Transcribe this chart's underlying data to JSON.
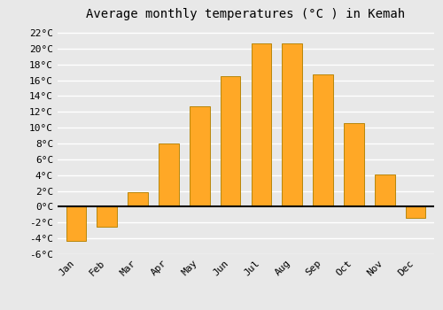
{
  "title": "Average monthly temperatures (°C ) in Kemah",
  "months": [
    "Jan",
    "Feb",
    "Mar",
    "Apr",
    "May",
    "Jun",
    "Jul",
    "Aug",
    "Sep",
    "Oct",
    "Nov",
    "Dec"
  ],
  "values": [
    -4.3,
    -2.5,
    1.8,
    8.0,
    12.7,
    16.5,
    20.7,
    20.6,
    16.7,
    10.6,
    4.1,
    -1.4
  ],
  "bar_color": "#FFA826",
  "bar_edge_color": "#B8860B",
  "ylim": [
    -6,
    23
  ],
  "yticks": [
    -6,
    -4,
    -2,
    0,
    2,
    4,
    6,
    8,
    10,
    12,
    14,
    16,
    18,
    20,
    22
  ],
  "ytick_labels": [
    "-6°C",
    "-4°C",
    "-2°C",
    "0°C",
    "2°C",
    "4°C",
    "6°C",
    "8°C",
    "10°C",
    "12°C",
    "14°C",
    "16°C",
    "18°C",
    "20°C",
    "22°C"
  ],
  "background_color": "#e8e8e8",
  "plot_bg_color": "#e8e8e8",
  "grid_color": "#ffffff",
  "title_fontsize": 10,
  "tick_fontsize": 8,
  "font_family": "monospace",
  "bar_width": 0.65
}
